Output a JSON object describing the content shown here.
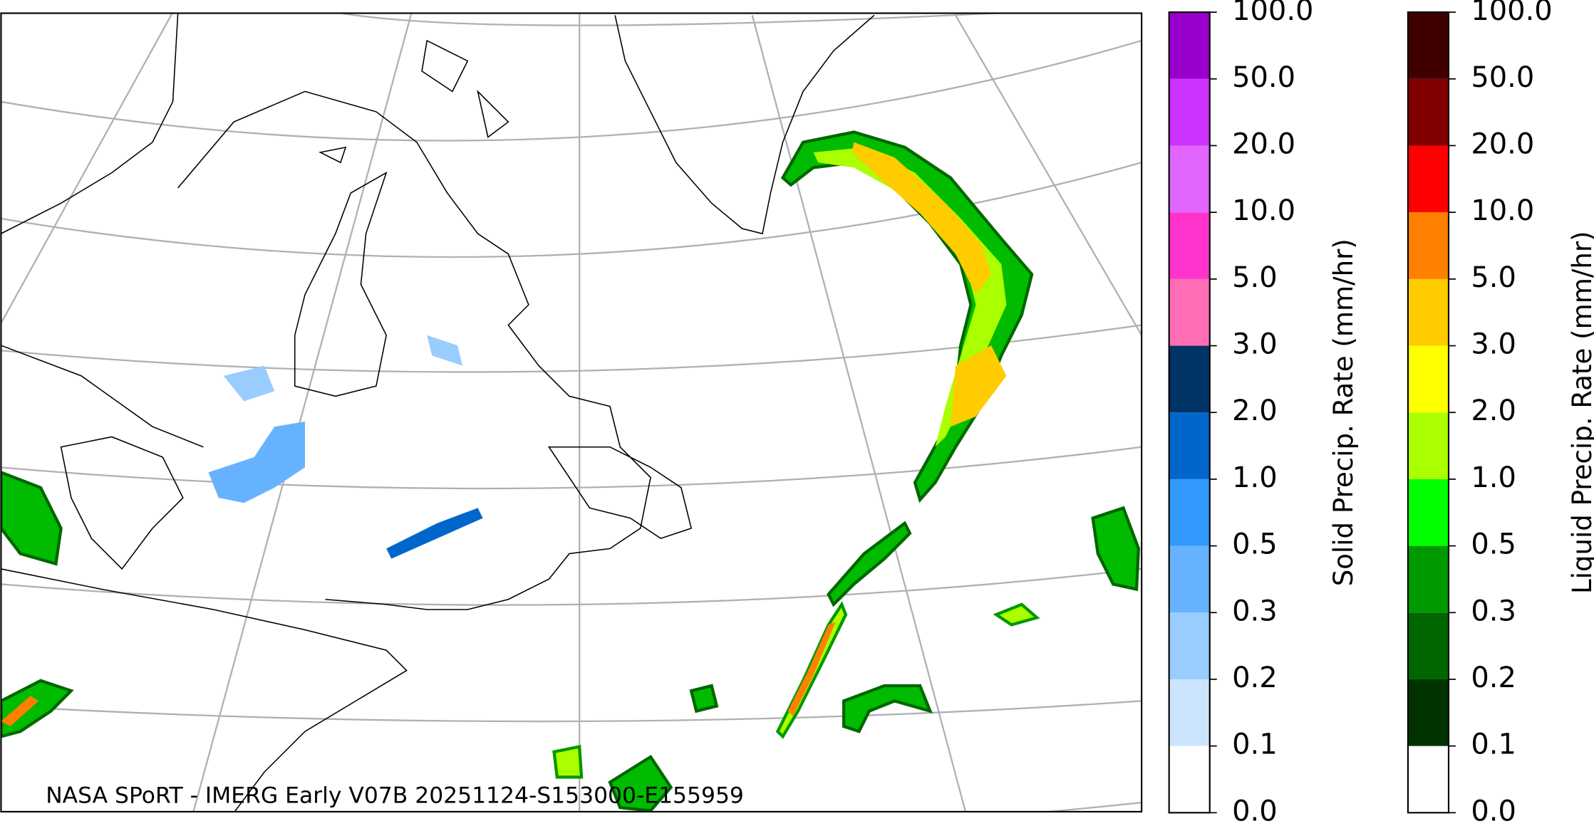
{
  "map": {
    "credit": "NASA SPoRT - IMERG Early V07B 20251124-S153000-E155959"
  },
  "colorbars": [
    {
      "label": "Solid Precip. Rate (mm/hr)",
      "ticks": [
        "0.0",
        "0.1",
        "0.2",
        "0.3",
        "0.5",
        "1.0",
        "2.0",
        "3.0",
        "5.0",
        "10.0",
        "20.0",
        "50.0",
        "100.0"
      ],
      "colors": [
        "#ffffff",
        "#cce5ff",
        "#99ccff",
        "#66b2ff",
        "#3399ff",
        "#0066cc",
        "#003366",
        "#ff6eb4",
        "#ff33cc",
        "#e066ff",
        "#cc33ff",
        "#9900cc"
      ]
    },
    {
      "label": "Liquid Precip. Rate (mm/hr)",
      "ticks": [
        "0.0",
        "0.1",
        "0.2",
        "0.3",
        "0.5",
        "1.0",
        "2.0",
        "3.0",
        "5.0",
        "10.0",
        "20.0",
        "50.0",
        "100.0"
      ],
      "colors": [
        "#ffffff",
        "#003300",
        "#006600",
        "#009900",
        "#00ff00",
        "#aaff00",
        "#ffff00",
        "#ffcc00",
        "#ff8000",
        "#ff0000",
        "#800000",
        "#400000"
      ]
    }
  ]
}
